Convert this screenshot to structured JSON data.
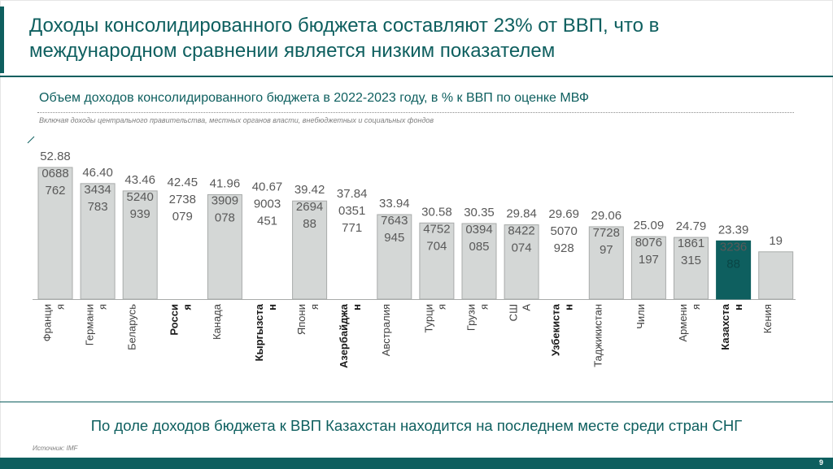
{
  "title": "Доходы консолидированного бюджета составляют 23% от ВВП, что в международном сравнении является низким показателем",
  "subtitle": "Объем доходов консолидированного бюджета в 2022-2023 году, в % к ВВП по оценке МВФ",
  "note": "Включая доходы центрального правительства, местных органов власти, внебюджетных и социальных фондов",
  "conclusion": "По доле доходов бюджета к ВВП Казахстан находится на последнем месте среди стран СНГ",
  "source": "Источник: IMF",
  "page_number": "9",
  "colors": {
    "accent": "#0e5f5f",
    "bar": "#d4d7d6",
    "bar_border": "#a8abaa",
    "highlight": "#0e5f5f"
  },
  "chart_data": {
    "type": "bar",
    "title": "Объем доходов консолидированного бюджета в 2022-2023 году, в % к ВВП по оценке МВФ",
    "xlabel": "",
    "ylabel": "",
    "ylim": [
      0,
      53
    ],
    "grid": false,
    "categories": [
      "Франция",
      "Германия",
      "Беларусь",
      "Россия",
      "Канада",
      "Кыргызстан",
      "Япония",
      "Азербайджан",
      "Австралия",
      "Турция",
      "Грузия",
      "США",
      "Узбекистан",
      "Таджикистан",
      "Чили",
      "Армения",
      "Казахстан",
      "Кения"
    ],
    "values": [
      52.88,
      46.4,
      43.46,
      42.45,
      41.96,
      40.67,
      39.42,
      37.84,
      33.94,
      30.58,
      30.35,
      29.84,
      29.69,
      29.06,
      25.09,
      24.79,
      23.39,
      19
    ],
    "data_labels": [
      [
        "52.88",
        "0688",
        "762"
      ],
      [
        "46.40",
        "3434",
        "783"
      ],
      [
        "43.46",
        "5240",
        "939"
      ],
      [
        "42.45",
        "2738",
        "079"
      ],
      [
        "41.96",
        "3909",
        "078"
      ],
      [
        "40.67",
        "9003",
        "451"
      ],
      [
        "39.42",
        "2694",
        "88"
      ],
      [
        "37.84",
        "0351",
        "771"
      ],
      [
        "33.94",
        "7643",
        "945"
      ],
      [
        "30.58",
        "4752",
        "704"
      ],
      [
        "30.35",
        "0394",
        "085"
      ],
      [
        "29.84",
        "8422",
        "074"
      ],
      [
        "29.69",
        "5070",
        "928"
      ],
      [
        "29.06",
        "7728",
        "97"
      ],
      [
        "25.09",
        "8076",
        "197"
      ],
      [
        "24.79",
        "1861",
        "315"
      ],
      [
        "23.39",
        "3236",
        "88"
      ],
      [
        "19"
      ]
    ],
    "tick_label_lines": [
      [
        "Франци",
        "я"
      ],
      [
        "Германи",
        "я"
      ],
      [
        "Беларусь"
      ],
      [
        "Росси",
        "я"
      ],
      [
        "Канада"
      ],
      [
        "Кыргызста",
        "н"
      ],
      [
        "Япони",
        "я"
      ],
      [
        "Азербайджа",
        "н"
      ],
      [
        "Австралия"
      ],
      [
        "Турци",
        "я"
      ],
      [
        "Грузи",
        "я"
      ],
      [
        "СШ",
        "А"
      ],
      [
        "Узбекиста",
        "н"
      ],
      [
        "Таджикистан"
      ],
      [
        "Чили"
      ],
      [
        "Армени",
        "я"
      ],
      [
        "Казахста",
        "н"
      ],
      [
        "Кения"
      ]
    ],
    "hidden_bars": [
      "Россия",
      "Кыргызстан",
      "Азербайджан",
      "Узбекистан"
    ],
    "bold_labels": [
      "Россия",
      "Кыргызстан",
      "Азербайджан",
      "Узбекистан",
      "Казахстан"
    ],
    "highlight": "Казахстан"
  }
}
